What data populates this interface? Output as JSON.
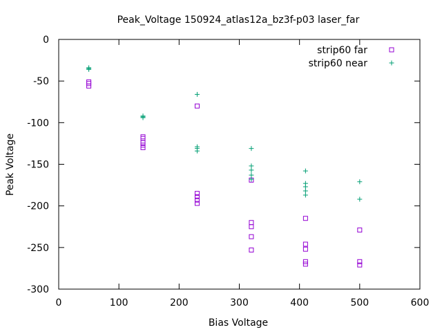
{
  "chart_data": {
    "type": "scatter",
    "title": "Peak_Voltage 150924_atlas12a_bz3f-p03 laser_far",
    "xlabel": "Bias Voltage",
    "ylabel": "Peak Voltage",
    "xlim": [
      0,
      600
    ],
    "ylim": [
      -300,
      0
    ],
    "xticks": [
      0,
      100,
      200,
      300,
      400,
      500,
      600
    ],
    "yticks": [
      0,
      -50,
      -100,
      -150,
      -200,
      -250,
      -300
    ],
    "grid": false,
    "legend_position": "top-right",
    "series": [
      {
        "name": "strip60 far",
        "marker": "square",
        "color": "#9400d3",
        "points": [
          [
            50,
            -51
          ],
          [
            50,
            -53
          ],
          [
            50,
            -56
          ],
          [
            140,
            -117
          ],
          [
            140,
            -119
          ],
          [
            140,
            -124
          ],
          [
            140,
            -127
          ],
          [
            140,
            -130
          ],
          [
            230,
            -80
          ],
          [
            230,
            -185
          ],
          [
            230,
            -189
          ],
          [
            230,
            -193
          ],
          [
            230,
            -197
          ],
          [
            320,
            -169
          ],
          [
            320,
            -220
          ],
          [
            320,
            -225
          ],
          [
            320,
            -237
          ],
          [
            320,
            -253
          ],
          [
            410,
            -215
          ],
          [
            410,
            -246
          ],
          [
            410,
            -252
          ],
          [
            410,
            -267
          ],
          [
            410,
            -270
          ],
          [
            500,
            -229
          ],
          [
            500,
            -267
          ],
          [
            500,
            -271
          ]
        ]
      },
      {
        "name": "strip60 near",
        "marker": "plus",
        "color": "#009e73",
        "points": [
          [
            50,
            -34
          ],
          [
            50,
            -35
          ],
          [
            50,
            -36
          ],
          [
            140,
            -92
          ],
          [
            140,
            -93
          ],
          [
            140,
            -94
          ],
          [
            230,
            -66
          ],
          [
            230,
            -129
          ],
          [
            230,
            -131
          ],
          [
            230,
            -134
          ],
          [
            320,
            -131
          ],
          [
            320,
            -152
          ],
          [
            320,
            -157
          ],
          [
            320,
            -163
          ],
          [
            320,
            -168
          ],
          [
            410,
            -158
          ],
          [
            410,
            -173
          ],
          [
            410,
            -177
          ],
          [
            410,
            -182
          ],
          [
            410,
            -187
          ],
          [
            500,
            -171
          ],
          [
            500,
            -192
          ]
        ]
      }
    ]
  }
}
